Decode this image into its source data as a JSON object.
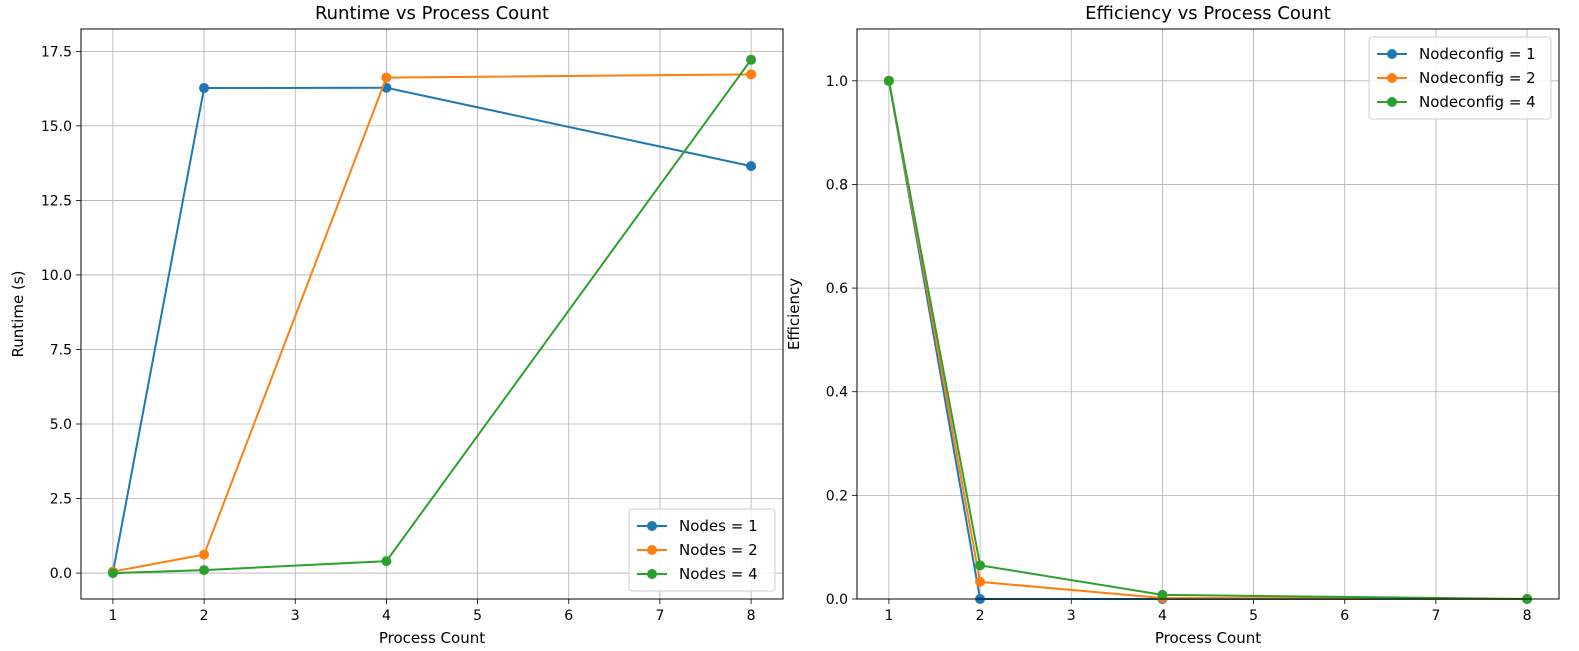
{
  "chart_data": [
    {
      "type": "line",
      "title": "Runtime vs Process Count",
      "xlabel": "Process Count",
      "ylabel": "Runtime (s)",
      "x": [
        1,
        2,
        4,
        8
      ],
      "xlim": [
        0.65,
        8.35
      ],
      "ylim": [
        -0.87,
        18.25
      ],
      "xticks": [
        1,
        2,
        3,
        4,
        5,
        6,
        7,
        8
      ],
      "yticks": [
        0.0,
        2.5,
        5.0,
        7.5,
        10.0,
        12.5,
        15.0,
        17.5
      ],
      "ytick_labels": [
        "0.0",
        "2.5",
        "5.0",
        "7.5",
        "10.0",
        "12.5",
        "15.0",
        "17.5"
      ],
      "grid": true,
      "legend_position": "lower-right",
      "series": [
        {
          "name": "Nodes = 1",
          "color": "#1f77b4",
          "values": [
            0.02,
            16.27,
            16.28,
            13.65
          ]
        },
        {
          "name": "Nodes = 2",
          "color": "#ff7f0e",
          "values": [
            0.05,
            0.62,
            16.62,
            16.73
          ]
        },
        {
          "name": "Nodes = 4",
          "color": "#2ca02c",
          "values": [
            0.0,
            0.1,
            0.4,
            17.22
          ]
        }
      ]
    },
    {
      "type": "line",
      "title": "Efficiency vs Process Count",
      "xlabel": "Process Count",
      "ylabel": "Efficiency",
      "x": [
        1,
        2,
        4,
        8
      ],
      "xlim": [
        0.65,
        8.35
      ],
      "ylim": [
        0.0,
        1.1
      ],
      "xticks": [
        1,
        2,
        3,
        4,
        5,
        6,
        7,
        8
      ],
      "yticks": [
        0.0,
        0.2,
        0.4,
        0.6,
        0.8,
        1.0
      ],
      "ytick_labels": [
        "0.0",
        "0.2",
        "0.4",
        "0.6",
        "0.8",
        "1.0"
      ],
      "grid": true,
      "legend_position": "upper-right",
      "series": [
        {
          "name": "Nodeconfig = 1",
          "color": "#1f77b4",
          "values": [
            1.0,
            0.0,
            0.0,
            0.0
          ]
        },
        {
          "name": "Nodeconfig = 2",
          "color": "#ff7f0e",
          "values": [
            1.0,
            0.033,
            0.002,
            0.0
          ]
        },
        {
          "name": "Nodeconfig = 4",
          "color": "#2ca02c",
          "values": [
            1.0,
            0.065,
            0.008,
            0.0
          ]
        }
      ]
    }
  ]
}
